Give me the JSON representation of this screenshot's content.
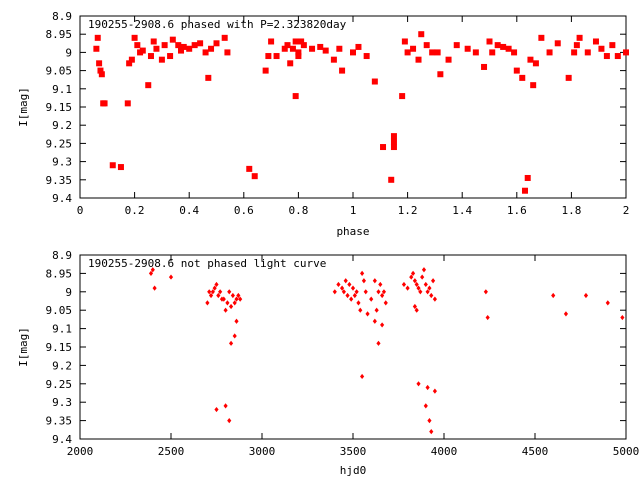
{
  "chart_data": [
    {
      "type": "scatter",
      "title": "190255-2908.6 phased with P=2.323820day",
      "xlabel": "phase",
      "ylabel": "I[mag]",
      "xlim": [
        0,
        2
      ],
      "ylim": [
        8.9,
        9.4
      ],
      "y_inverted": true,
      "marker": "filled-square",
      "color": "#ff0000",
      "xticks": [
        "0",
        "0.2",
        "0.4",
        "0.6",
        "0.8",
        "1",
        "1.2",
        "1.4",
        "1.6",
        "1.8",
        "2"
      ],
      "xtick_values": [
        0,
        0.2,
        0.4,
        0.6,
        0.8,
        1.0,
        1.2,
        1.4,
        1.6,
        1.8,
        2.0
      ],
      "yticks": [
        "8.9",
        "8.95",
        "9",
        "9.05",
        "9.1",
        "9.15",
        "9.2",
        "9.25",
        "9.3",
        "9.35",
        "9.4"
      ],
      "ytick_values": [
        8.9,
        8.95,
        9.0,
        9.05,
        9.1,
        9.15,
        9.2,
        9.25,
        9.3,
        9.35,
        9.4
      ],
      "x": [
        0.06,
        0.065,
        0.07,
        0.075,
        0.08,
        0.085,
        0.09,
        0.12,
        0.15,
        0.175,
        0.18,
        0.19,
        0.2,
        0.21,
        0.22,
        0.23,
        0.25,
        0.26,
        0.27,
        0.28,
        0.3,
        0.31,
        0.33,
        0.34,
        0.36,
        0.37,
        0.38,
        0.4,
        0.42,
        0.44,
        0.46,
        0.47,
        0.48,
        0.5,
        0.53,
        0.54,
        0.62,
        0.64,
        0.68,
        0.69,
        0.7,
        0.72,
        0.75,
        0.76,
        0.77,
        0.78,
        0.79,
        0.79,
        0.8,
        0.8,
        0.81,
        0.82,
        0.85,
        0.88,
        0.9,
        0.93,
        0.95,
        0.96,
        1.0,
        1.02,
        1.05,
        1.08,
        1.11,
        1.14,
        1.15,
        1.15,
        1.15,
        1.18,
        1.19,
        1.2,
        1.22,
        1.24,
        1.25,
        1.27,
        1.29,
        1.31,
        1.32,
        1.35,
        1.38,
        1.42,
        1.45,
        1.48,
        1.5,
        1.51,
        1.53,
        1.55,
        1.57,
        1.59,
        1.6,
        1.62,
        1.63,
        1.64,
        1.65,
        1.66,
        1.67,
        1.69,
        1.72,
        1.75,
        1.79,
        1.81,
        1.82,
        1.83,
        1.86,
        1.89,
        1.91,
        1.93,
        1.95,
        1.97,
        2.0
      ],
      "y": [
        8.99,
        8.96,
        9.03,
        9.05,
        9.06,
        9.14,
        9.14,
        9.31,
        9.315,
        9.14,
        9.03,
        9.02,
        8.96,
        8.98,
        9.0,
        8.995,
        9.09,
        9.01,
        8.97,
        8.99,
        9.02,
        8.98,
        9.01,
        8.965,
        8.98,
        8.995,
        8.985,
        8.99,
        8.98,
        8.975,
        9.0,
        9.07,
        8.99,
        8.975,
        8.96,
        9.0,
        9.32,
        9.34,
        9.05,
        9.01,
        8.97,
        9.01,
        8.99,
        8.98,
        9.03,
        8.99,
        9.12,
        8.97,
        9.0,
        9.01,
        8.97,
        8.98,
        8.99,
        8.985,
        8.995,
        9.02,
        8.99,
        9.05,
        9.0,
        8.985,
        9.01,
        9.08,
        9.26,
        9.35,
        9.26,
        9.23,
        9.245,
        9.12,
        8.97,
        9.0,
        8.99,
        9.02,
        8.95,
        8.98,
        9.0,
        9.0,
        9.06,
        9.02,
        8.98,
        8.99,
        9.0,
        9.04,
        8.97,
        9.0,
        8.98,
        8.985,
        8.99,
        9.0,
        9.05,
        9.07,
        9.38,
        9.345,
        9.02,
        9.09,
        9.03,
        8.96,
        9.0,
        8.975,
        9.07,
        9.0,
        8.98,
        8.96,
        9.0,
        8.97,
        8.99,
        9.01,
        8.98,
        9.01,
        9.0
      ]
    },
    {
      "type": "scatter",
      "title": "190255-2908.6 not phased light curve",
      "xlabel": "hjd0",
      "ylabel": "I[mag]",
      "xlim": [
        2000,
        5000
      ],
      "ylim": [
        8.9,
        9.4
      ],
      "y_inverted": true,
      "marker": "small-diamond",
      "color": "#ff0000",
      "xticks": [
        "2000",
        "2500",
        "3000",
        "3500",
        "4000",
        "4500",
        "5000"
      ],
      "xtick_values": [
        2000,
        2500,
        3000,
        3500,
        4000,
        4500,
        5000
      ],
      "yticks": [
        "8.9",
        "8.95",
        "9",
        "9.05",
        "9.1",
        "9.15",
        "9.2",
        "9.25",
        "9.3",
        "9.35",
        "9.4"
      ],
      "ytick_values": [
        8.9,
        8.95,
        9.0,
        9.05,
        9.1,
        9.15,
        9.2,
        9.25,
        9.3,
        9.35,
        9.4
      ],
      "x": [
        2390,
        2400,
        2410,
        2500,
        2700,
        2710,
        2720,
        2730,
        2740,
        2750,
        2760,
        2770,
        2780,
        2790,
        2800,
        2810,
        2820,
        2830,
        2840,
        2850,
        2860,
        2870,
        2880,
        2750,
        2800,
        2820,
        2850,
        2860,
        2830,
        3400,
        3420,
        3440,
        3450,
        3460,
        3470,
        3480,
        3490,
        3500,
        3510,
        3520,
        3530,
        3540,
        3550,
        3560,
        3570,
        3580,
        3600,
        3620,
        3630,
        3640,
        3650,
        3660,
        3670,
        3680,
        3550,
        3620,
        3640,
        3660,
        3780,
        3800,
        3820,
        3830,
        3840,
        3850,
        3860,
        3870,
        3880,
        3890,
        3900,
        3910,
        3920,
        3930,
        3940,
        3950,
        3850,
        3860,
        3900,
        3910,
        3950,
        3840,
        3920,
        3930,
        4230,
        4240,
        4600,
        4670,
        4780,
        4900,
        4980
      ],
      "y": [
        8.95,
        8.94,
        8.99,
        8.96,
        9.03,
        9.0,
        9.01,
        9.0,
        8.99,
        8.98,
        9.01,
        9.0,
        9.02,
        9.02,
        9.05,
        9.03,
        9.0,
        9.04,
        9.01,
        9.03,
        9.02,
        9.01,
        9.02,
        9.32,
        9.31,
        9.35,
        9.12,
        9.08,
        9.14,
        9.0,
        8.98,
        8.99,
        9.0,
        8.97,
        9.01,
        8.98,
        9.02,
        8.99,
        9.01,
        9.0,
        9.03,
        9.05,
        8.95,
        8.97,
        9.0,
        9.06,
        9.02,
        8.97,
        9.05,
        9.0,
        8.98,
        9.01,
        9.0,
        9.03,
        9.23,
        9.08,
        9.14,
        9.09,
        8.98,
        8.99,
        8.96,
        8.95,
        8.97,
        8.98,
        8.99,
        9.0,
        8.96,
        8.94,
        8.98,
        9.0,
        8.99,
        9.01,
        8.97,
        9.02,
        9.05,
        9.25,
        9.31,
        9.26,
        9.27,
        9.04,
        9.35,
        9.38,
        9.0,
        9.07,
        9.01,
        9.06,
        9.01,
        9.03,
        9.07
      ]
    }
  ]
}
